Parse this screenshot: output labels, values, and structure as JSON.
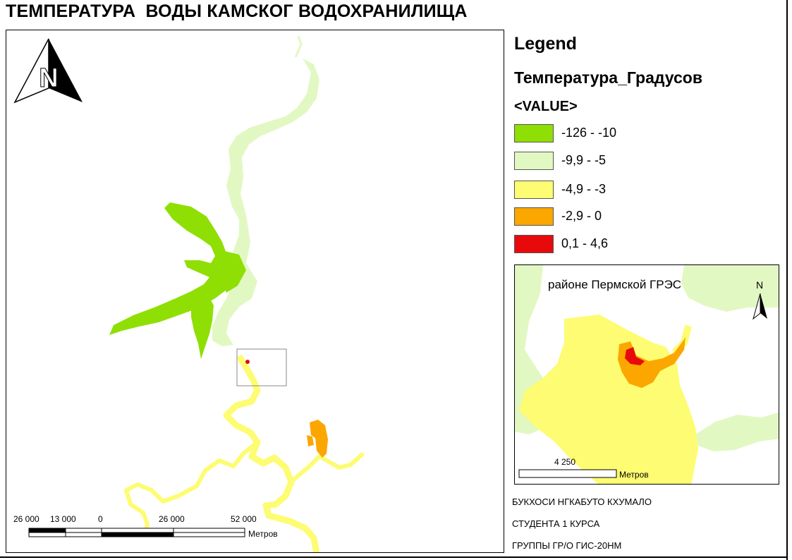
{
  "title": "ТЕМПЕРАТУРА  ВОДЫ КАМСКОГ ВОДОХРАНИЛИЩА",
  "north_arrow": {
    "letter": "N"
  },
  "legend": {
    "title": "Legend",
    "field": "Температура_Градусов",
    "value_header": "<VALUE>",
    "items": [
      {
        "label": "-126 - -10",
        "color": "#8fdf05"
      },
      {
        "label": "-9,9 - -5",
        "color": "#e2f8c3"
      },
      {
        "label": "-4,9 - -3",
        "color": "#fdfc72"
      },
      {
        "label": "-2,9 - 0",
        "color": "#fba700"
      },
      {
        "label": "0,1 - 4,6",
        "color": "#e80a0a"
      }
    ]
  },
  "inset": {
    "title": "районе Пермской ГРЭС",
    "north": "N",
    "scale": {
      "value": "4 250",
      "units": "Метров"
    }
  },
  "main_scale": {
    "ticks": [
      "26 000",
      "13 000",
      "0",
      "26 000",
      "52 000"
    ],
    "units": "Метров"
  },
  "info": {
    "author": "БУКХОСИ НГКАБУТО КХУМАЛО",
    "student": "СТУДЕНТА 1 КУРСА",
    "group": "ГРУППЫ ГР/О ГИС-20НМ"
  }
}
